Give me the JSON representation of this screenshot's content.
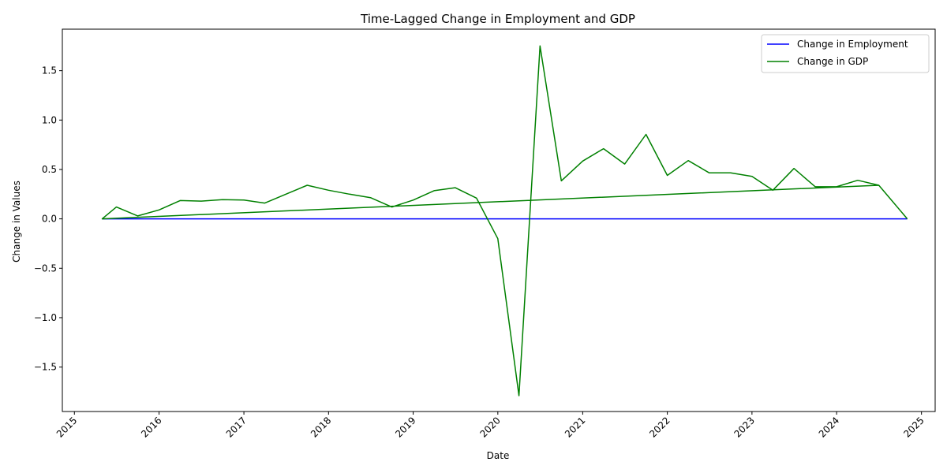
{
  "chart_data": {
    "type": "line",
    "title": "Time-Lagged Change in Employment and GDP",
    "xlabel": "Date",
    "ylabel": "Change in Values",
    "xlim": [
      "2014-11-10",
      "2025-03-01"
    ],
    "ylim": [
      -1.95,
      1.92
    ],
    "x_ticks": [
      "2015",
      "2016",
      "2017",
      "2018",
      "2019",
      "2020",
      "2021",
      "2022",
      "2023",
      "2024",
      "2025"
    ],
    "y_ticks": [
      -1.5,
      -1.0,
      -0.5,
      0.0,
      0.5,
      1.0,
      1.5
    ],
    "y_tick_labels": [
      "−1.5",
      "−1.0",
      "−0.5",
      "0.0",
      "0.5",
      "1.0",
      "1.5"
    ],
    "grid": false,
    "legend_position": "upper right",
    "colors": {
      "employment": "#0000ff",
      "gdp": "#008000"
    },
    "series": [
      {
        "name": "Change in Employment",
        "color": "#0000ff",
        "x": [
          "2015-05-01",
          "2024-11-01"
        ],
        "values": [
          0.0,
          0.0
        ]
      },
      {
        "name": "Change in GDP",
        "color": "#008000",
        "x": [
          "2015-05-01",
          "2015-05-01",
          "2015-07-01",
          "2015-10-01",
          "2016-01-01",
          "2016-04-01",
          "2016-07-01",
          "2016-10-01",
          "2017-01-01",
          "2017-04-01",
          "2017-07-01",
          "2017-10-01",
          "2018-01-01",
          "2018-04-01",
          "2018-07-01",
          "2018-10-01",
          "2019-01-01",
          "2019-04-01",
          "2019-07-01",
          "2019-10-01",
          "2020-01-01",
          "2020-04-01",
          "2020-07-01",
          "2020-10-01",
          "2021-01-01",
          "2021-04-01",
          "2021-07-01",
          "2021-10-01",
          "2022-01-01",
          "2022-04-01",
          "2022-07-01",
          "2022-10-01",
          "2023-01-01",
          "2023-04-01",
          "2023-07-01",
          "2023-10-01",
          "2024-01-01",
          "2024-04-01",
          "2024-07-01",
          "2015-05-01",
          "2024-07-01",
          "2024-11-01"
        ],
        "values": [
          0.0,
          0.0,
          0.12,
          0.03,
          0.09,
          0.185,
          0.18,
          0.195,
          0.19,
          0.16,
          0.25,
          0.34,
          0.29,
          0.25,
          0.215,
          0.12,
          0.19,
          0.285,
          0.315,
          0.21,
          -0.2,
          -1.79,
          1.75,
          0.385,
          0.585,
          0.71,
          0.555,
          0.855,
          0.44,
          0.59,
          0.465,
          0.465,
          0.43,
          0.29,
          0.51,
          0.325,
          0.325,
          0.39,
          0.34,
          0.0,
          0.34,
          0.0
        ]
      }
    ]
  }
}
